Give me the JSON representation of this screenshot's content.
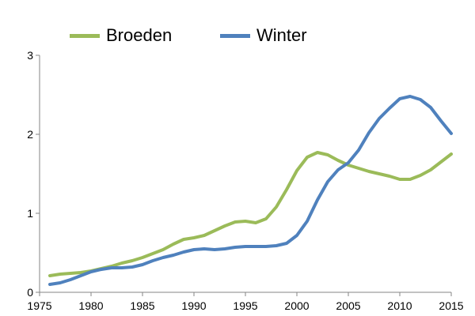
{
  "chart_data": {
    "type": "line",
    "title": "",
    "xlabel": "",
    "ylabel": "",
    "xlim": [
      1975,
      2015
    ],
    "ylim": [
      0,
      3
    ],
    "xticks": [
      1975,
      1980,
      1985,
      1990,
      1995,
      2000,
      2005,
      2010,
      2015
    ],
    "yticks": [
      0,
      1,
      2,
      3
    ],
    "grid": false,
    "legend": "top",
    "x": [
      1976,
      1977,
      1978,
      1979,
      1980,
      1981,
      1982,
      1983,
      1984,
      1985,
      1986,
      1987,
      1988,
      1989,
      1990,
      1991,
      1992,
      1993,
      1994,
      1995,
      1996,
      1997,
      1998,
      1999,
      2000,
      2001,
      2002,
      2003,
      2004,
      2005,
      2006,
      2007,
      2008,
      2009,
      2010,
      2011,
      2012,
      2013,
      2014,
      2015
    ],
    "series": [
      {
        "name": "Broeden",
        "color": "#9bbb59",
        "values": [
          0.21,
          0.23,
          0.24,
          0.25,
          0.27,
          0.3,
          0.33,
          0.37,
          0.4,
          0.44,
          0.49,
          0.54,
          0.61,
          0.67,
          0.69,
          0.72,
          0.78,
          0.84,
          0.89,
          0.9,
          0.88,
          0.93,
          1.08,
          1.3,
          1.54,
          1.71,
          1.77,
          1.74,
          1.67,
          1.61,
          1.57,
          1.53,
          1.5,
          1.47,
          1.43,
          1.43,
          1.48,
          1.55,
          1.65,
          1.75
        ]
      },
      {
        "name": "Winter",
        "color": "#4f81bd",
        "values": [
          0.1,
          0.12,
          0.16,
          0.21,
          0.26,
          0.29,
          0.31,
          0.31,
          0.32,
          0.35,
          0.4,
          0.44,
          0.47,
          0.51,
          0.54,
          0.55,
          0.54,
          0.55,
          0.57,
          0.58,
          0.58,
          0.58,
          0.59,
          0.62,
          0.72,
          0.9,
          1.17,
          1.4,
          1.55,
          1.64,
          1.8,
          2.02,
          2.2,
          2.33,
          2.45,
          2.48,
          2.44,
          2.34,
          2.17,
          2.01
        ]
      }
    ]
  }
}
